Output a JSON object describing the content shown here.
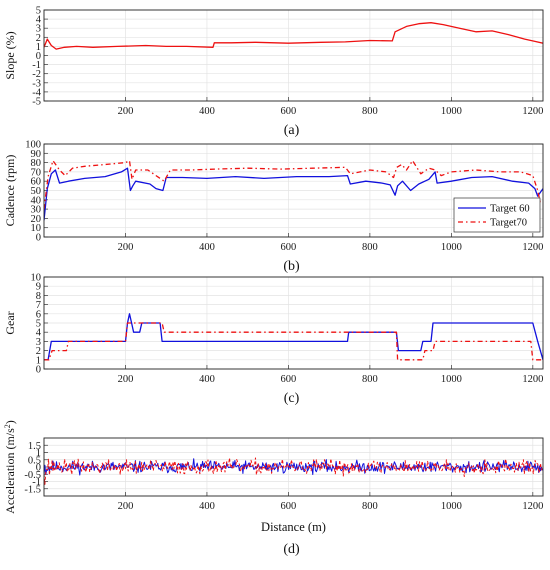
{
  "chart_data": [
    {
      "type": "line",
      "caption": "(a)",
      "ylabel": "Slope (%)",
      "xlabel": "",
      "xlim": [
        0,
        1225
      ],
      "ylim": [
        -5,
        5
      ],
      "yticks": [
        "-5",
        "-4",
        "-3",
        "-2",
        "-1",
        "0",
        "1",
        "2",
        "3",
        "4",
        "5"
      ],
      "xticks": [
        "200",
        "400",
        "600",
        "800",
        "1000",
        "1200"
      ],
      "grid": true,
      "legend": null,
      "series": [
        {
          "color": "#ee1111",
          "dash": "solid",
          "points": [
            [
              0,
              0.9
            ],
            [
              8,
              1.8
            ],
            [
              18,
              1.1
            ],
            [
              30,
              0.7
            ],
            [
              50,
              0.9
            ],
            [
              80,
              1.0
            ],
            [
              120,
              0.9
            ],
            [
              180,
              1.0
            ],
            [
              250,
              1.1
            ],
            [
              300,
              1.0
            ],
            [
              350,
              1.0
            ],
            [
              415,
              0.9
            ],
            [
              418,
              1.4
            ],
            [
              460,
              1.4
            ],
            [
              520,
              1.45
            ],
            [
              600,
              1.35
            ],
            [
              680,
              1.45
            ],
            [
              740,
              1.5
            ],
            [
              800,
              1.65
            ],
            [
              855,
              1.6
            ],
            [
              862,
              2.6
            ],
            [
              890,
              3.2
            ],
            [
              920,
              3.5
            ],
            [
              950,
              3.6
            ],
            [
              980,
              3.4
            ],
            [
              1020,
              3.0
            ],
            [
              1060,
              2.6
            ],
            [
              1100,
              2.7
            ],
            [
              1140,
              2.3
            ],
            [
              1180,
              1.8
            ],
            [
              1205,
              1.55
            ],
            [
              1225,
              1.35
            ]
          ]
        }
      ]
    },
    {
      "type": "line",
      "caption": "(b)",
      "ylabel": "Cadence (rpm)",
      "xlabel": "",
      "xlim": [
        0,
        1225
      ],
      "ylim": [
        0,
        100
      ],
      "yticks": [
        "0",
        "10",
        "20",
        "30",
        "40",
        "50",
        "60",
        "70",
        "80",
        "90",
        "100"
      ],
      "xticks": [
        "200",
        "400",
        "600",
        "800",
        "1000",
        "1200"
      ],
      "grid": true,
      "legend": "bottom-right",
      "series": [
        {
          "name": "Target 60",
          "color": "#1111dd",
          "dash": "solid",
          "points": [
            [
              0,
              18
            ],
            [
              8,
              52
            ],
            [
              18,
              68
            ],
            [
              28,
              72
            ],
            [
              38,
              58
            ],
            [
              60,
              60
            ],
            [
              100,
              63
            ],
            [
              150,
              65
            ],
            [
              190,
              70
            ],
            [
              205,
              74
            ],
            [
              212,
              50
            ],
            [
              218,
              55
            ],
            [
              225,
              60
            ],
            [
              260,
              57
            ],
            [
              275,
              52
            ],
            [
              292,
              50
            ],
            [
              300,
              64
            ],
            [
              340,
              64
            ],
            [
              400,
              63
            ],
            [
              470,
              65
            ],
            [
              540,
              63
            ],
            [
              620,
              65
            ],
            [
              700,
              65
            ],
            [
              745,
              66
            ],
            [
              752,
              57
            ],
            [
              790,
              60
            ],
            [
              830,
              58
            ],
            [
              850,
              56
            ],
            [
              862,
              45
            ],
            [
              868,
              55
            ],
            [
              880,
              60
            ],
            [
              900,
              50
            ],
            [
              920,
              57
            ],
            [
              945,
              62
            ],
            [
              960,
              70
            ],
            [
              965,
              58
            ],
            [
              1000,
              60
            ],
            [
              1050,
              64
            ],
            [
              1100,
              65
            ],
            [
              1150,
              60
            ],
            [
              1190,
              58
            ],
            [
              1205,
              52
            ],
            [
              1212,
              44
            ],
            [
              1225,
              52
            ]
          ]
        },
        {
          "name": "Target70",
          "color": "#ee1111",
          "dash": "5,3,1.5,3",
          "points": [
            [
              0,
              30
            ],
            [
              10,
              65
            ],
            [
              22,
              82
            ],
            [
              38,
              72
            ],
            [
              52,
              66
            ],
            [
              70,
              74
            ],
            [
              100,
              76
            ],
            [
              150,
              78
            ],
            [
              200,
              80
            ],
            [
              210,
              82
            ],
            [
              216,
              62
            ],
            [
              225,
              72
            ],
            [
              255,
              72
            ],
            [
              275,
              66
            ],
            [
              295,
              60
            ],
            [
              310,
              72
            ],
            [
              360,
              72
            ],
            [
              420,
              73
            ],
            [
              500,
              74
            ],
            [
              580,
              73
            ],
            [
              660,
              74
            ],
            [
              740,
              75
            ],
            [
              752,
              68
            ],
            [
              800,
              72
            ],
            [
              840,
              70
            ],
            [
              858,
              64
            ],
            [
              866,
              75
            ],
            [
              878,
              78
            ],
            [
              890,
              72
            ],
            [
              905,
              82
            ],
            [
              925,
              68
            ],
            [
              945,
              74
            ],
            [
              960,
              72
            ],
            [
              975,
              66
            ],
            [
              1000,
              70
            ],
            [
              1060,
              72
            ],
            [
              1120,
              70
            ],
            [
              1170,
              70
            ],
            [
              1200,
              66
            ],
            [
              1212,
              50
            ],
            [
              1218,
              38
            ],
            [
              1225,
              40
            ]
          ]
        }
      ]
    },
    {
      "type": "line",
      "caption": "(c)",
      "ylabel": "Gear",
      "xlabel": "",
      "xlim": [
        0,
        1225
      ],
      "ylim": [
        0,
        10
      ],
      "yticks": [
        "0",
        "1",
        "2",
        "3",
        "4",
        "5",
        "6",
        "7",
        "8",
        "9",
        "10"
      ],
      "xticks": [
        "200",
        "400",
        "600",
        "800",
        "1000",
        "1200"
      ],
      "grid": true,
      "legend": null,
      "series": [
        {
          "color": "#1111dd",
          "dash": "solid",
          "points": [
            [
              0,
              1
            ],
            [
              10,
              1
            ],
            [
              18,
              3
            ],
            [
              200,
              3
            ],
            [
              205,
              5
            ],
            [
              210,
              6
            ],
            [
              215,
              5
            ],
            [
              220,
              4
            ],
            [
              235,
              4
            ],
            [
              240,
              5
            ],
            [
              285,
              5
            ],
            [
              290,
              3
            ],
            [
              745,
              3
            ],
            [
              748,
              4
            ],
            [
              865,
              4
            ],
            [
              870,
              2
            ],
            [
              925,
              2
            ],
            [
              930,
              3
            ],
            [
              950,
              3
            ],
            [
              955,
              5
            ],
            [
              1200,
              5
            ],
            [
              1212,
              3
            ],
            [
              1225,
              1
            ]
          ]
        },
        {
          "color": "#ee1111",
          "dash": "5,3,1.5,3",
          "points": [
            [
              0,
              1
            ],
            [
              12,
              1
            ],
            [
              20,
              2
            ],
            [
              55,
              2
            ],
            [
              60,
              3
            ],
            [
              200,
              3
            ],
            [
              205,
              5
            ],
            [
              290,
              5
            ],
            [
              295,
              4
            ],
            [
              865,
              4
            ],
            [
              868,
              1
            ],
            [
              930,
              1
            ],
            [
              935,
              2
            ],
            [
              955,
              2
            ],
            [
              960,
              3
            ],
            [
              1195,
              3
            ],
            [
              1200,
              1
            ],
            [
              1225,
              1
            ]
          ]
        }
      ]
    },
    {
      "type": "line",
      "caption": "(d)",
      "ylabel": "Acceleration (m/s²)",
      "xlabel": "Distance (m)",
      "xlim": [
        0,
        1225
      ],
      "ylim": [
        -2,
        2
      ],
      "yticks": [
        "-1.5",
        "-1",
        "-0.5",
        "0",
        "0.5",
        "1",
        "1.5"
      ],
      "ytickvals": [
        -1.5,
        -1,
        -0.5,
        0,
        0.5,
        1,
        1.5
      ],
      "xticks": [
        "200",
        "400",
        "600",
        "800",
        "1000",
        "1200"
      ],
      "grid": true,
      "legend": null,
      "series": [
        {
          "color": "#1111dd",
          "dash": "solid",
          "noise_amplitude": 0.35,
          "seed": 11
        },
        {
          "color": "#ee1111",
          "dash": "3,2",
          "noise_amplitude": 0.42,
          "seed": 37
        }
      ]
    }
  ]
}
